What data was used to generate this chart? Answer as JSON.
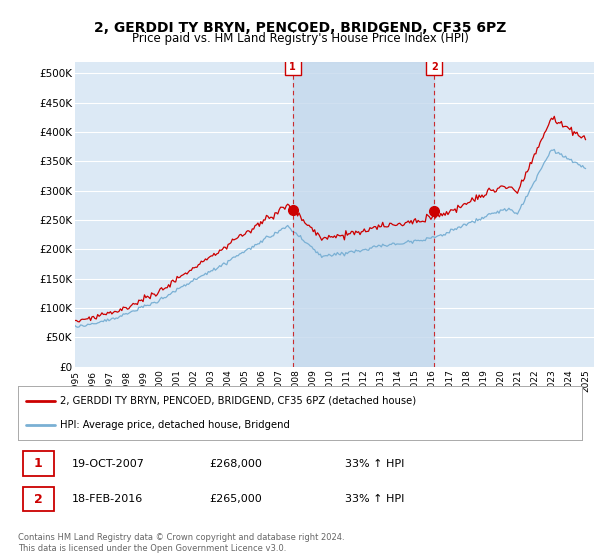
{
  "title": "2, GERDDI TY BRYN, PENCOED, BRIDGEND, CF35 6PZ",
  "subtitle": "Price paid vs. HM Land Registry's House Price Index (HPI)",
  "title_fontsize": 10,
  "subtitle_fontsize": 8.5,
  "xlim_start": 1995.0,
  "xlim_end": 2025.5,
  "ylim": [
    0,
    520000
  ],
  "yticks": [
    0,
    50000,
    100000,
    150000,
    200000,
    250000,
    300000,
    350000,
    400000,
    450000,
    500000
  ],
  "ytick_labels": [
    "£0",
    "£50K",
    "£100K",
    "£150K",
    "£200K",
    "£250K",
    "£300K",
    "£350K",
    "£400K",
    "£450K",
    "£500K"
  ],
  "xticks": [
    1995,
    1996,
    1997,
    1998,
    1999,
    2000,
    2001,
    2002,
    2003,
    2004,
    2005,
    2006,
    2007,
    2008,
    2009,
    2010,
    2011,
    2012,
    2013,
    2014,
    2015,
    2016,
    2017,
    2018,
    2019,
    2020,
    2021,
    2022,
    2023,
    2024,
    2025
  ],
  "hpi_color": "#7ab0d4",
  "price_color": "#cc0000",
  "sale1_x": 2007.8,
  "sale1_y": 268000,
  "sale1_label": "1",
  "sale1_date": "19-OCT-2007",
  "sale1_price": "£268,000",
  "sale1_hpi": "33% ↑ HPI",
  "sale2_x": 2016.12,
  "sale2_y": 265000,
  "sale2_label": "2",
  "sale2_date": "18-FEB-2016",
  "sale2_price": "£265,000",
  "sale2_hpi": "33% ↑ HPI",
  "legend_line1": "2, GERDDI TY BRYN, PENCOED, BRIDGEND, CF35 6PZ (detached house)",
  "legend_line2": "HPI: Average price, detached house, Bridgend",
  "footer1": "Contains HM Land Registry data © Crown copyright and database right 2024.",
  "footer2": "This data is licensed under the Open Government Licence v3.0.",
  "plot_bg_color": "#dce9f5",
  "shade_color": "#c5d9ed"
}
